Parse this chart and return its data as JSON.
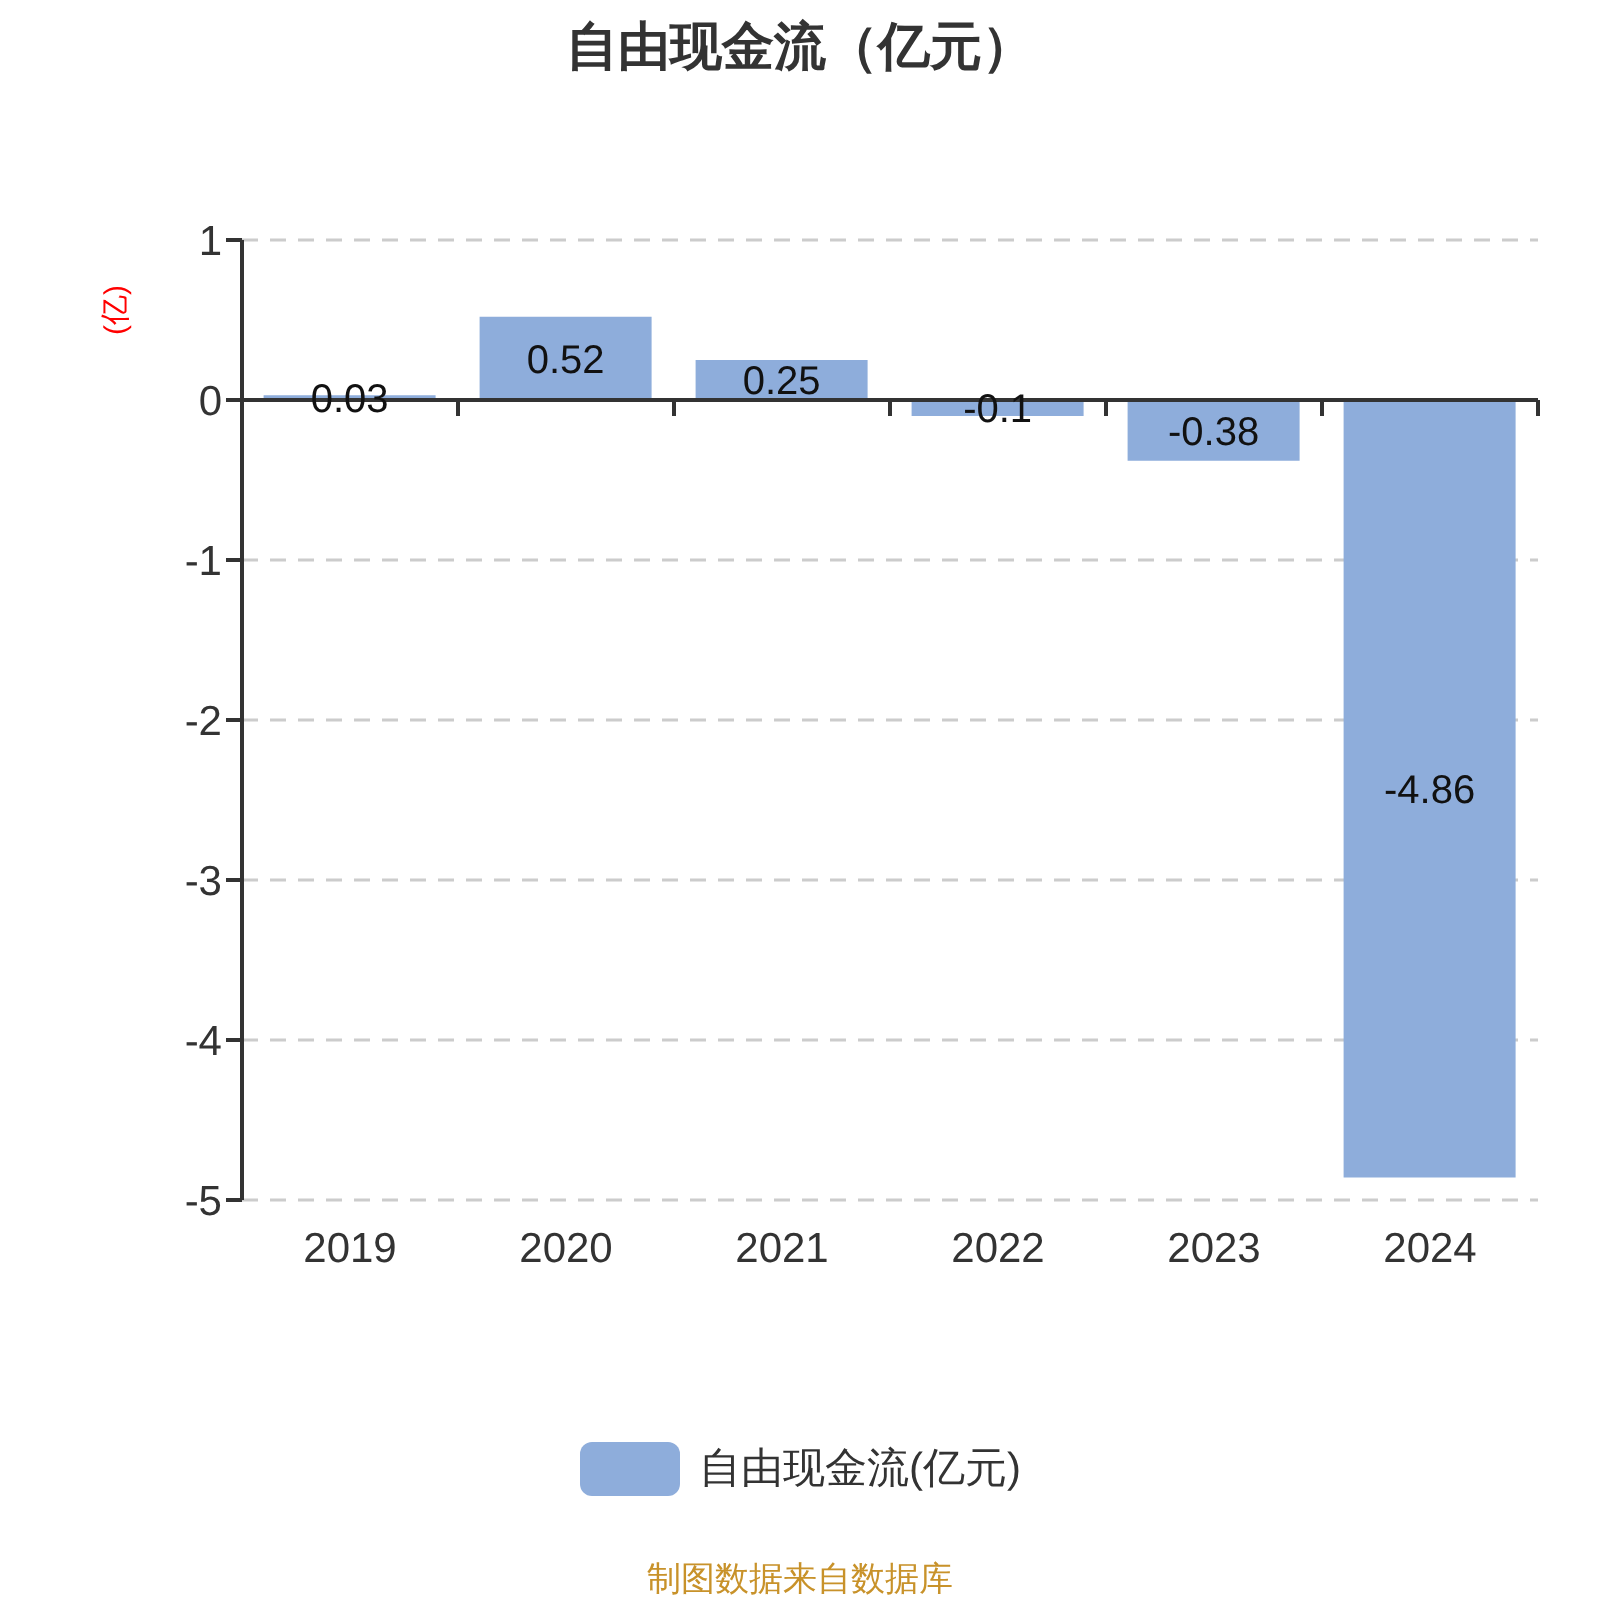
{
  "chart_data": {
    "type": "bar",
    "title": "自由现金流（亿元）",
    "ylabel": "(亿)",
    "categories": [
      "2019",
      "2020",
      "2021",
      "2022",
      "2023",
      "2024"
    ],
    "series": [
      {
        "name": "自由现金流(亿元)",
        "color": "#8eaddb",
        "values": [
          0.03,
          0.52,
          0.25,
          -0.1,
          -0.38,
          -4.86
        ]
      }
    ],
    "ylim": [
      -5,
      1
    ],
    "yticks": [
      -5,
      -4,
      -3,
      -2,
      -1,
      0,
      1
    ],
    "grid": "y",
    "legend": "bottom",
    "data_labels": true,
    "annotations": [
      "制图数据来自数据库"
    ]
  }
}
